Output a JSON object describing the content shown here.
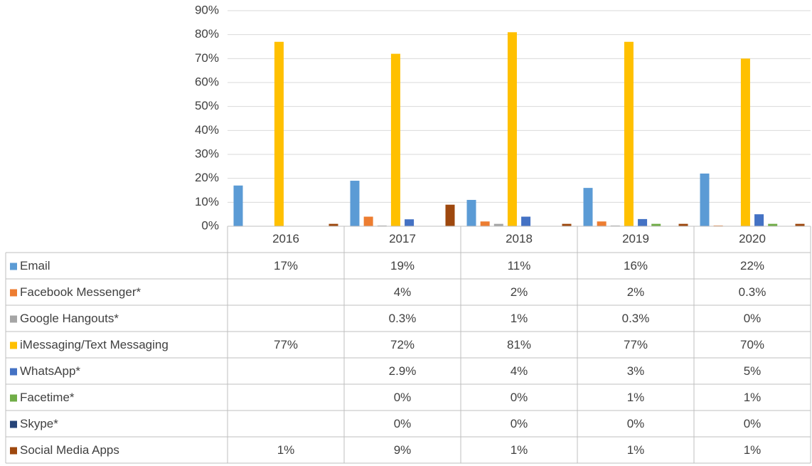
{
  "chart_data": {
    "type": "bar",
    "categories": [
      "2016",
      "2017",
      "2018",
      "2019",
      "2020"
    ],
    "series": [
      {
        "name": "Email",
        "color": "#5b9bd5",
        "values": [
          17,
          19,
          11,
          16,
          22
        ],
        "value_labels": [
          "17%",
          "19%",
          "11%",
          "16%",
          "22%"
        ]
      },
      {
        "name": "Facebook Messenger*",
        "color": "#ed7d31",
        "values": [
          null,
          4,
          2,
          2,
          0.3
        ],
        "value_labels": [
          null,
          "4%",
          "2%",
          "2%",
          "0.3%"
        ]
      },
      {
        "name": "Google Hangouts*",
        "color": "#a5a5a5",
        "values": [
          null,
          0.3,
          1,
          0.3,
          0
        ],
        "value_labels": [
          null,
          "0.3%",
          "1%",
          "0.3%",
          "0%"
        ]
      },
      {
        "name": "iMessaging/Text Messaging",
        "color": "#ffc000",
        "values": [
          77,
          72,
          81,
          77,
          70
        ],
        "value_labels": [
          "77%",
          "72%",
          "81%",
          "77%",
          "70%"
        ]
      },
      {
        "name": "WhatsApp*",
        "color": "#4472c4",
        "values": [
          null,
          2.9,
          4,
          3,
          5
        ],
        "value_labels": [
          null,
          "2.9%",
          "4%",
          "3%",
          "5%"
        ]
      },
      {
        "name": "Facetime*",
        "color": "#70ad47",
        "values": [
          null,
          0,
          0,
          1,
          1
        ],
        "value_labels": [
          null,
          "0%",
          "0%",
          "1%",
          "1%"
        ]
      },
      {
        "name": "Skype*",
        "color": "#264478",
        "values": [
          null,
          0,
          0,
          0,
          0
        ],
        "value_labels": [
          null,
          "0%",
          "0%",
          "0%",
          "0%"
        ]
      },
      {
        "name": "Social Media Apps",
        "color": "#9e480e",
        "values": [
          1,
          9,
          1,
          1,
          1
        ],
        "value_labels": [
          "1%",
          "9%",
          "1%",
          "1%",
          "1%"
        ]
      }
    ],
    "ylim": [
      0,
      90
    ],
    "yticks": [
      {
        "value": 0,
        "label": "0%"
      },
      {
        "value": 10,
        "label": "10%"
      },
      {
        "value": 20,
        "label": "20%"
      },
      {
        "value": 30,
        "label": "30%"
      },
      {
        "value": 40,
        "label": "40%"
      },
      {
        "value": 50,
        "label": "50%"
      },
      {
        "value": 60,
        "label": "60%"
      },
      {
        "value": 70,
        "label": "70%"
      },
      {
        "value": 80,
        "label": "80%"
      },
      {
        "value": 90,
        "label": "90%"
      }
    ],
    "grid": true
  }
}
